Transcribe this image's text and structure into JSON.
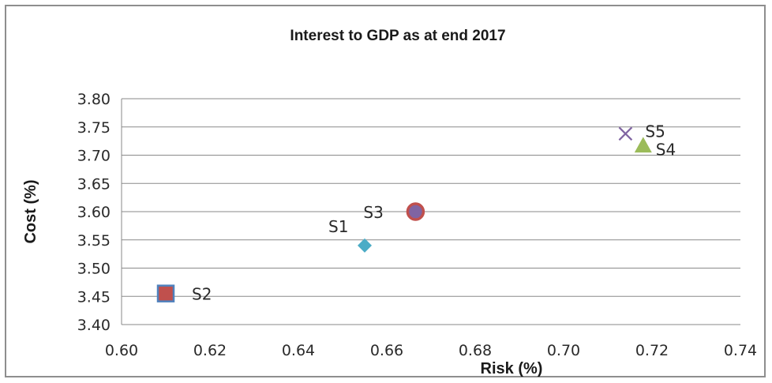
{
  "chart_data": {
    "type": "scatter",
    "title": "Interest to GDP as at end 2017",
    "xlabel": "Risk (%)",
    "ylabel": "Cost (%)",
    "xlim": [
      0.6,
      0.74
    ],
    "ylim": [
      3.4,
      3.8
    ],
    "x_ticks": [
      "0.60",
      "0.62",
      "0.64",
      "0.66",
      "0.68",
      "0.70",
      "0.72",
      "0.74"
    ],
    "y_ticks": [
      "3.80",
      "3.75",
      "3.70",
      "3.65",
      "3.60",
      "3.55",
      "3.50",
      "3.45",
      "3.40"
    ],
    "grid": "horizontal",
    "legend": "none",
    "points": [
      {
        "label": "S1",
        "x": 0.655,
        "y": 3.54,
        "marker": "diamond",
        "color": "#4bacc6"
      },
      {
        "label": "S2",
        "x": 0.61,
        "y": 3.455,
        "marker": "square",
        "color": "#c0504d",
        "edge_color": "#4f81bd"
      },
      {
        "label": "S3",
        "x": 0.6665,
        "y": 3.6,
        "marker": "circle",
        "color": "#8064a2",
        "edge_color": "#c0504d"
      },
      {
        "label": "S4",
        "x": 0.718,
        "y": 3.717,
        "marker": "triangle",
        "color": "#9bbb59"
      },
      {
        "label": "S5",
        "x": 0.714,
        "y": 3.738,
        "marker": "x",
        "color": "#8064a2"
      }
    ]
  }
}
